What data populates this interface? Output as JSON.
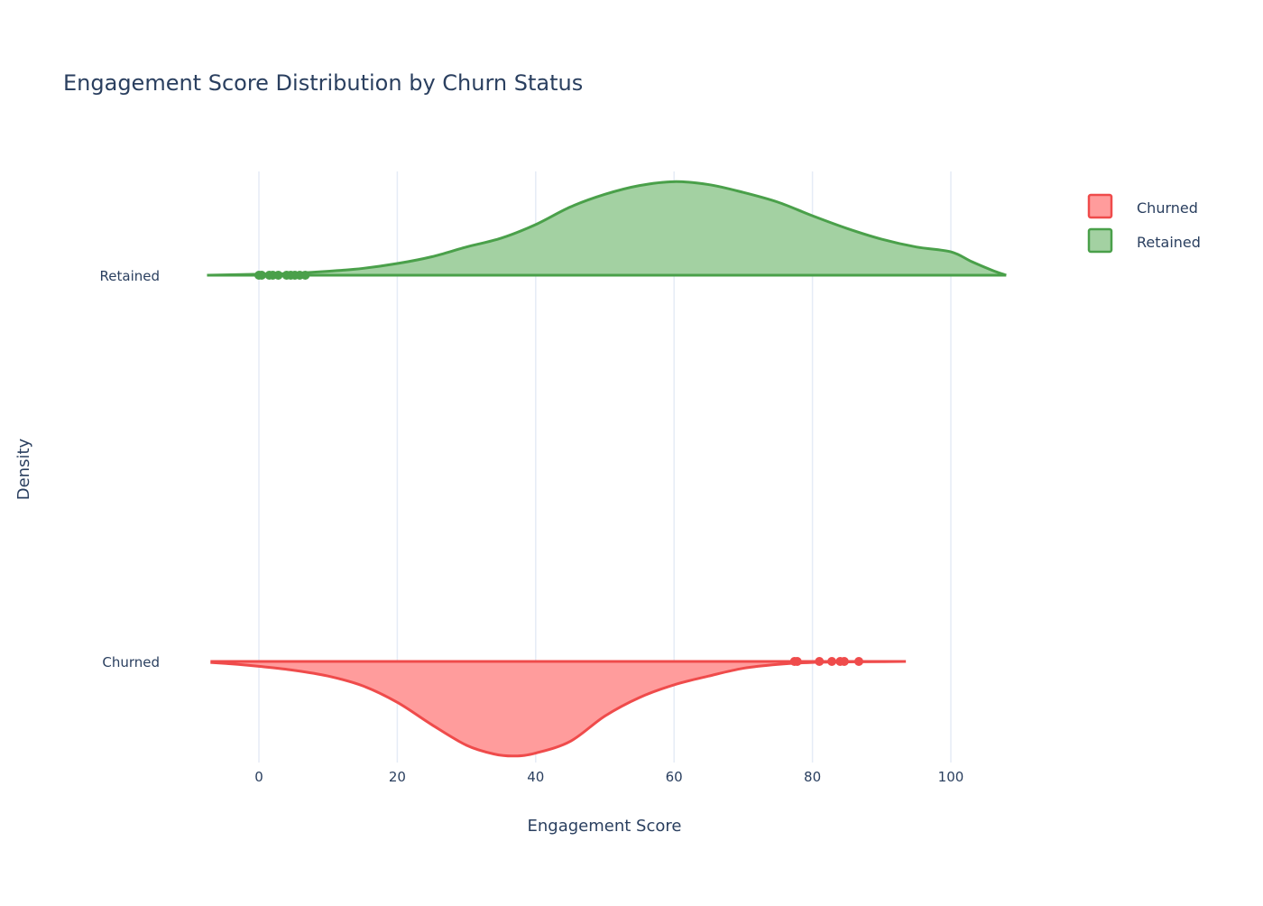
{
  "chart_data": {
    "type": "violin",
    "title": "Engagement Score Distribution by Churn Status",
    "xlabel": "Engagement Score",
    "ylabel": "Density",
    "xlim": [
      -7.5,
      108
    ],
    "x_ticks": [
      0,
      20,
      40,
      60,
      80,
      100
    ],
    "grid": true,
    "legend_position": "top-right",
    "series": [
      {
        "name": "Churned",
        "category": "Churned",
        "side": "negative",
        "line_color": "#ef4b4b",
        "fill_color": "#ff9c9c",
        "density": [
          [
            -7,
            0.01
          ],
          [
            -3,
            0.03
          ],
          [
            0,
            0.05
          ],
          [
            5,
            0.09
          ],
          [
            10,
            0.15
          ],
          [
            15,
            0.25
          ],
          [
            20,
            0.42
          ],
          [
            25,
            0.65
          ],
          [
            30,
            0.86
          ],
          [
            34,
            0.95
          ],
          [
            37,
            0.97
          ],
          [
            40,
            0.94
          ],
          [
            45,
            0.82
          ],
          [
            50,
            0.56
          ],
          [
            55,
            0.37
          ],
          [
            60,
            0.24
          ],
          [
            65,
            0.15
          ],
          [
            70,
            0.07
          ],
          [
            75,
            0.03
          ],
          [
            80,
            0.01
          ],
          [
            85,
            0.005
          ],
          [
            90,
            0.002
          ],
          [
            93.5,
            0.0
          ]
        ],
        "outliers": [
          77.4,
          77.8,
          81.0,
          82.8,
          84.0,
          84.6,
          86.7
        ]
      },
      {
        "name": "Retained",
        "category": "Retained",
        "side": "positive",
        "line_color": "#4aa04a",
        "fill_color": "#a3d1a2",
        "density": [
          [
            -7.5,
            0.0
          ],
          [
            0,
            0.01
          ],
          [
            5,
            0.02
          ],
          [
            10,
            0.04
          ],
          [
            15,
            0.07
          ],
          [
            20,
            0.12
          ],
          [
            25,
            0.19
          ],
          [
            30,
            0.29
          ],
          [
            35,
            0.38
          ],
          [
            40,
            0.52
          ],
          [
            45,
            0.7
          ],
          [
            50,
            0.83
          ],
          [
            55,
            0.92
          ],
          [
            60,
            0.96
          ],
          [
            65,
            0.93
          ],
          [
            70,
            0.85
          ],
          [
            75,
            0.75
          ],
          [
            80,
            0.61
          ],
          [
            85,
            0.48
          ],
          [
            90,
            0.37
          ],
          [
            95,
            0.29
          ],
          [
            100,
            0.24
          ],
          [
            103,
            0.14
          ],
          [
            106,
            0.05
          ],
          [
            108,
            0.0
          ]
        ],
        "outliers": [
          0.0,
          0.4,
          1.5,
          2.0,
          2.8,
          4.0,
          4.6,
          5.2,
          5.9,
          6.7
        ]
      }
    ]
  }
}
